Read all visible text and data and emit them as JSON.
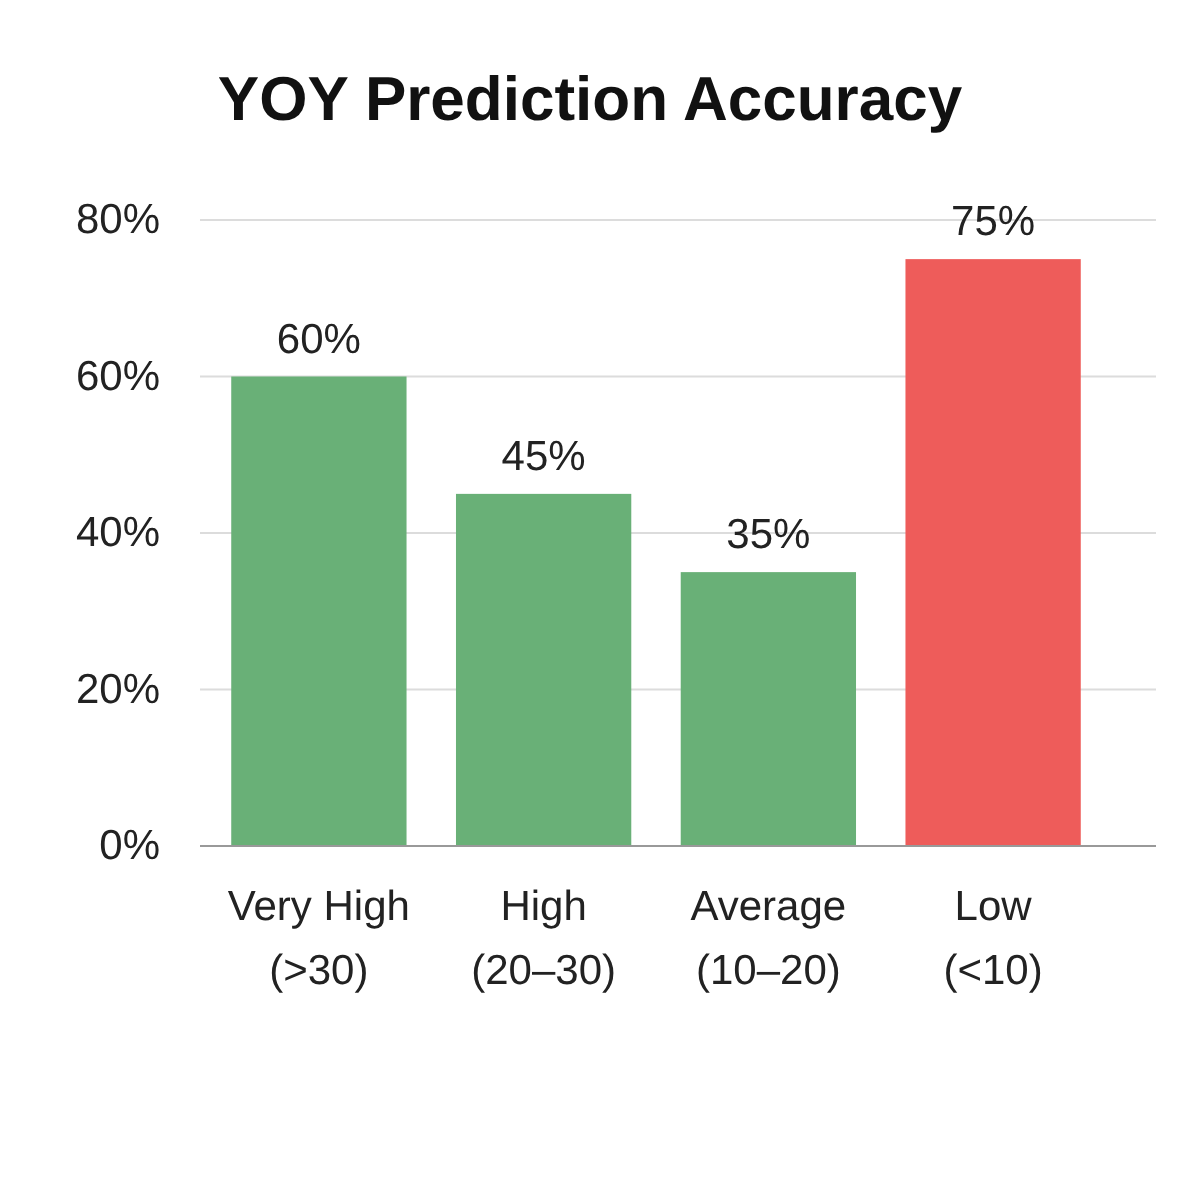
{
  "chart_data": {
    "type": "bar",
    "title": "YOY Prediction Accuracy",
    "categories": [
      "Very High (>30)",
      "High (20–30)",
      "Average (10–20)",
      "Low (<10)"
    ],
    "values": [
      60,
      45,
      35,
      75
    ],
    "colors": [
      "#69b077",
      "#69b077",
      "#69b077",
      "#ee5c5a"
    ],
    "ylim": [
      0,
      80
    ],
    "yticks": [
      {
        "value": 0,
        "label": "0%"
      },
      {
        "value": 20,
        "label": "20%"
      },
      {
        "value": 40,
        "label": "40%"
      },
      {
        "value": 60,
        "label": "60%"
      },
      {
        "value": 80,
        "label": "80%"
      }
    ],
    "value_labels": [
      "60%",
      "45%",
      "35%",
      "75%"
    ],
    "grid": "y"
  }
}
